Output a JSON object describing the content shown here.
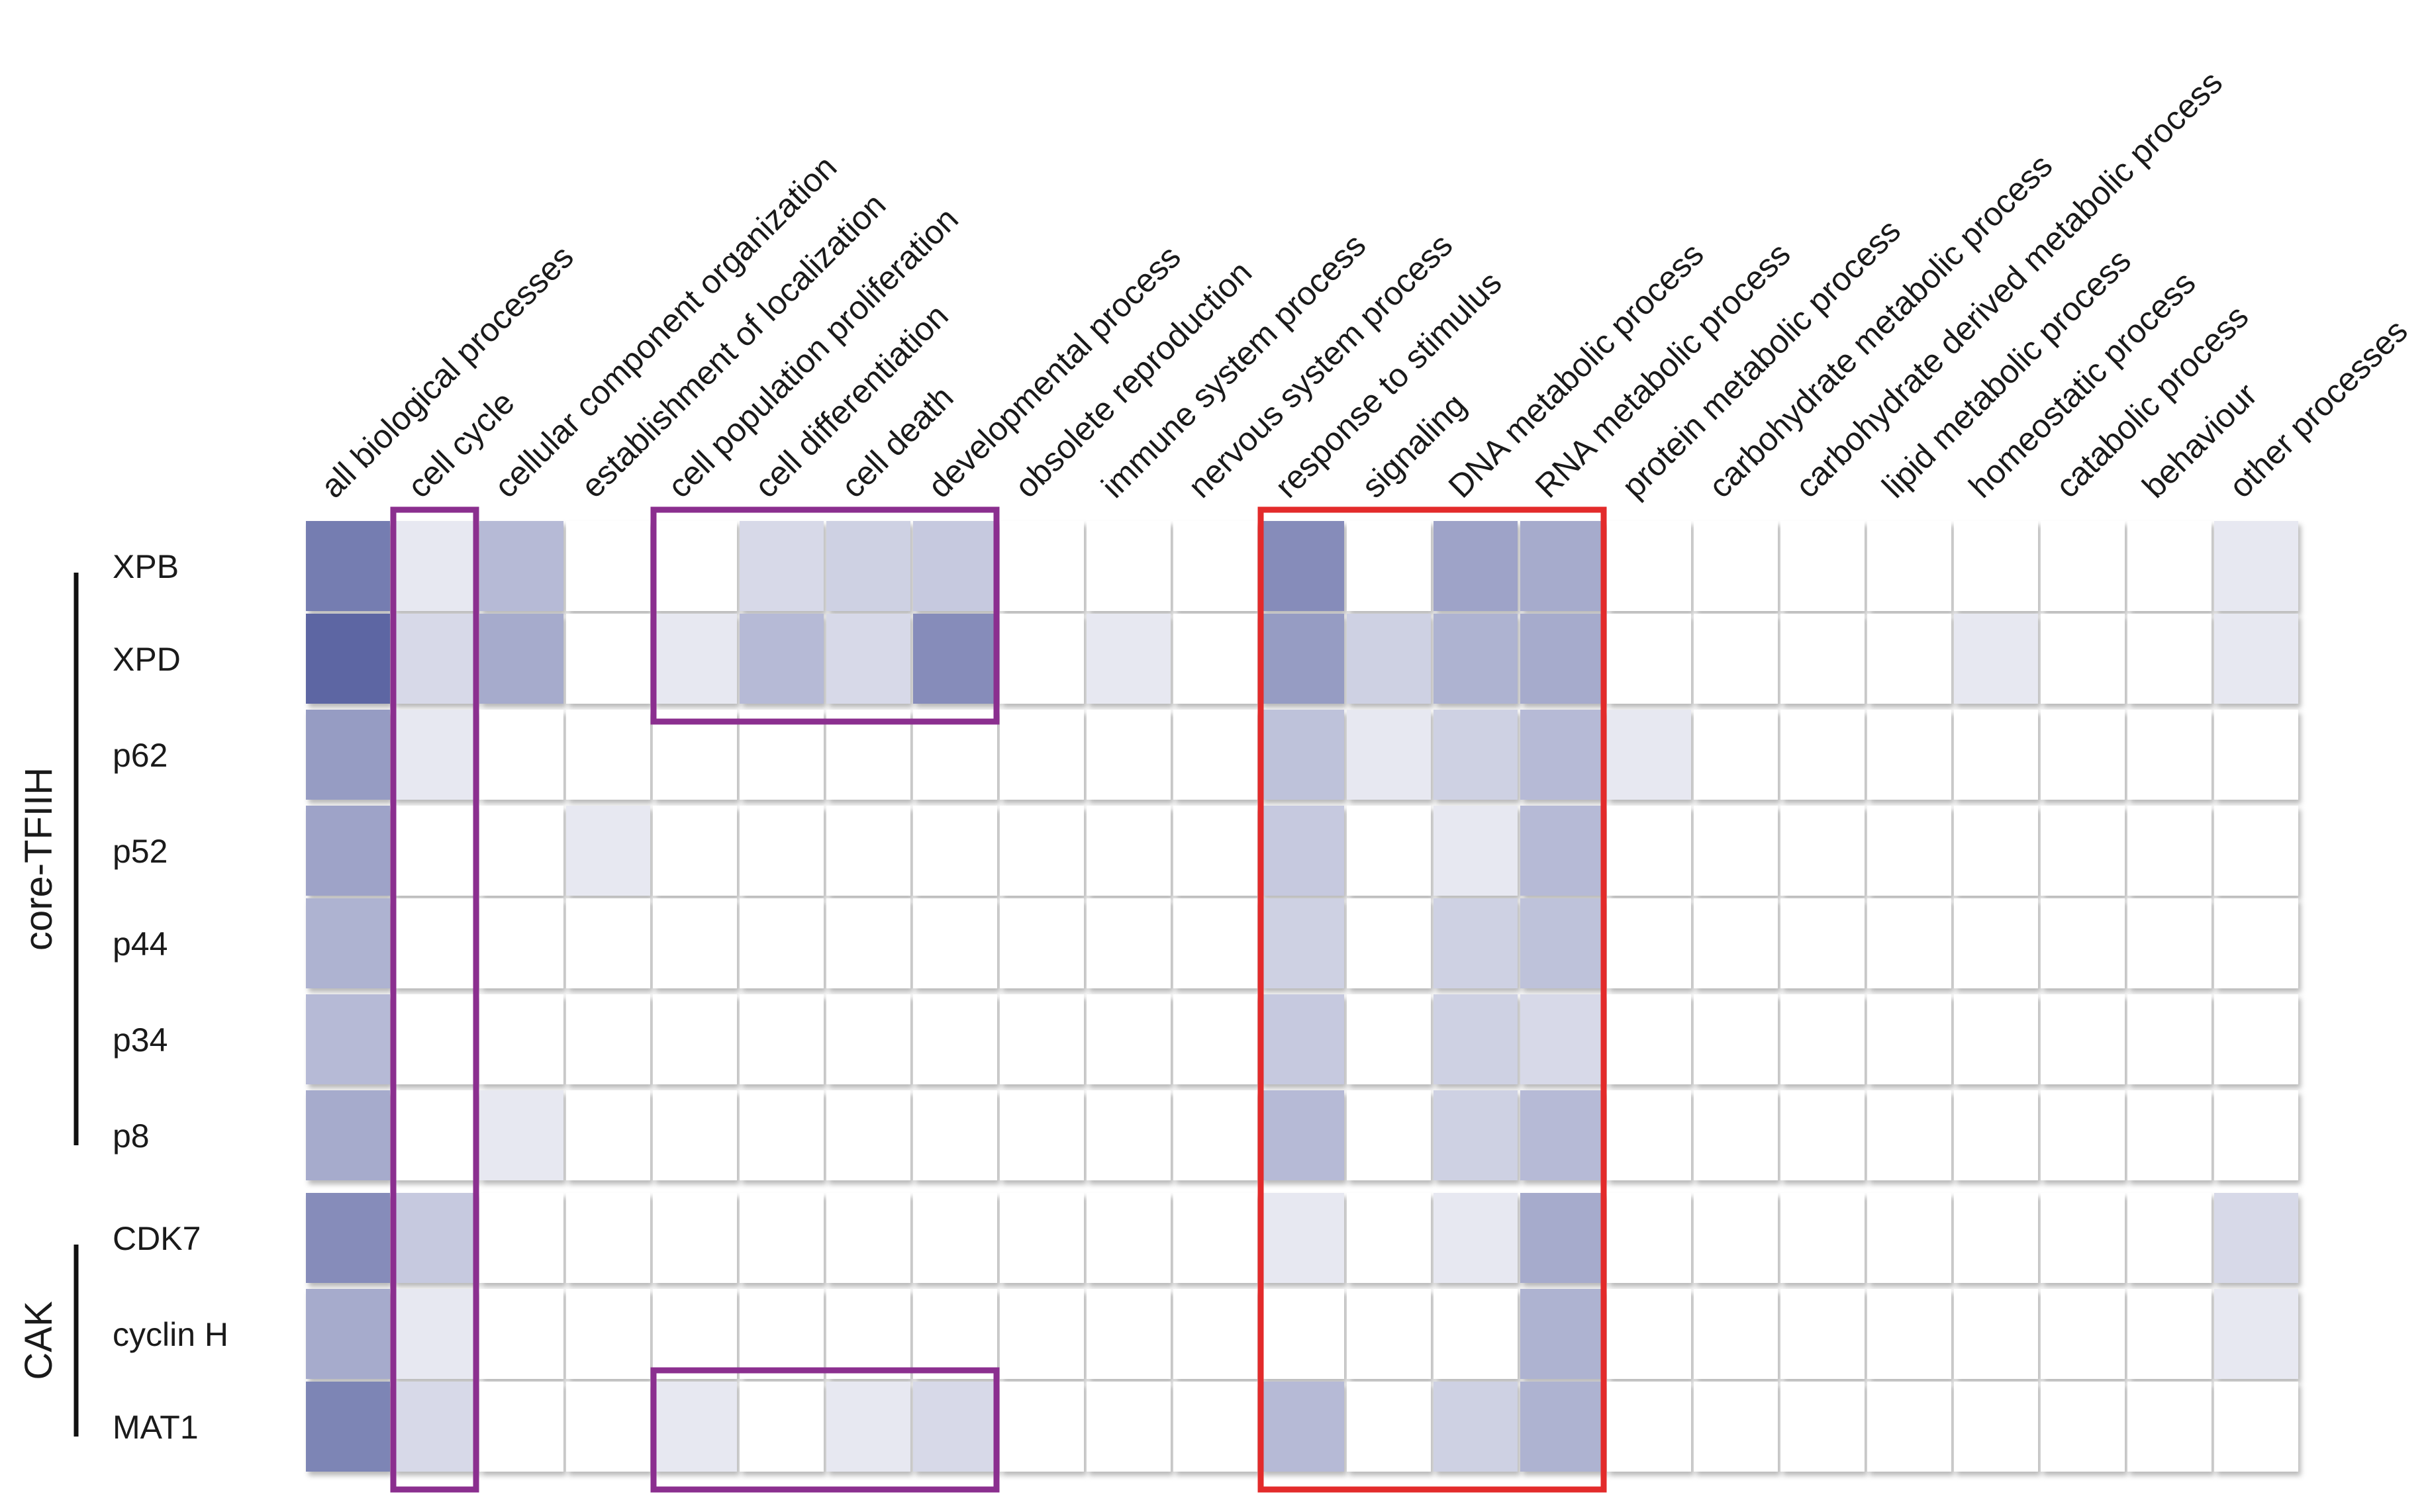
{
  "chart_data": {
    "type": "heatmap",
    "color_low": "#ffffff",
    "color_high": "#5d66a3",
    "columns": [
      "all biological processes",
      "cell cycle",
      "cellular component organization",
      "establishment of localization",
      "cell population proliferation",
      "cell differentiation",
      "cell death",
      "developmental process",
      "obsolete reproduction",
      "immune system process",
      "nervous system process",
      "response to stimulus",
      "signaling",
      "DNA metabolic process",
      "RNA metabolic process",
      "protein metabolic process",
      "carbohydrate metabolic process",
      "carbohydrate derived metabolic process",
      "lipid metabolic process",
      "homeostatic process",
      "catabolic process",
      "behaviour",
      "other processes"
    ],
    "rows": [
      "XPB",
      "XPD",
      "p62",
      "p52",
      "p44",
      "p34",
      "p8",
      "CDK7",
      "cyclin H",
      "MAT1"
    ],
    "row_groups": [
      {
        "name": "core-TFIIH",
        "rows": [
          "XPB",
          "XPD",
          "p62",
          "p52",
          "p44",
          "p34",
          "p8"
        ]
      },
      {
        "name": "CAK",
        "rows": [
          "CDK7",
          "cyclin H",
          "MAT1"
        ]
      }
    ],
    "values": [
      [
        0.85,
        0.15,
        0.45,
        0,
        0,
        0.25,
        0.3,
        0.35,
        0,
        0,
        0,
        0.75,
        0,
        0.6,
        0.55,
        0,
        0,
        0,
        0,
        0,
        0,
        0,
        0.15
      ],
      [
        1.0,
        0.25,
        0.55,
        0,
        0.15,
        0.45,
        0.25,
        0.75,
        0,
        0.15,
        0,
        0.65,
        0.3,
        0.5,
        0.55,
        0,
        0,
        0,
        0,
        0.15,
        0,
        0,
        0.15
      ],
      [
        0.65,
        0.15,
        0,
        0,
        0,
        0,
        0,
        0,
        0,
        0,
        0,
        0.4,
        0.15,
        0.3,
        0.45,
        0.15,
        0,
        0,
        0,
        0,
        0,
        0,
        0
      ],
      [
        0.6,
        0,
        0,
        0.15,
        0,
        0,
        0,
        0,
        0,
        0,
        0,
        0.35,
        0,
        0.15,
        0.45,
        0,
        0,
        0,
        0,
        0,
        0,
        0,
        0
      ],
      [
        0.5,
        0,
        0,
        0,
        0,
        0,
        0,
        0,
        0,
        0,
        0,
        0.3,
        0,
        0.3,
        0.4,
        0,
        0,
        0,
        0,
        0,
        0,
        0,
        0
      ],
      [
        0.45,
        0,
        0,
        0,
        0,
        0,
        0,
        0,
        0,
        0,
        0,
        0.35,
        0,
        0.3,
        0.25,
        0,
        0,
        0,
        0,
        0,
        0,
        0,
        0
      ],
      [
        0.55,
        0,
        0.15,
        0,
        0,
        0,
        0,
        0,
        0,
        0,
        0,
        0.45,
        0,
        0.3,
        0.45,
        0,
        0,
        0,
        0,
        0,
        0,
        0,
        0
      ],
      [
        0.75,
        0.35,
        0,
        0,
        0,
        0,
        0,
        0,
        0,
        0,
        0,
        0.15,
        0,
        0.15,
        0.55,
        0,
        0,
        0,
        0,
        0,
        0,
        0,
        0.25
      ],
      [
        0.55,
        0.15,
        0,
        0,
        0,
        0,
        0,
        0,
        0,
        0,
        0,
        0,
        0,
        0,
        0.5,
        0,
        0,
        0,
        0,
        0,
        0,
        0,
        0.15
      ],
      [
        0.8,
        0.25,
        0,
        0,
        0.15,
        0,
        0.15,
        0.25,
        0,
        0,
        0,
        0.45,
        0,
        0.3,
        0.5,
        0,
        0,
        0,
        0,
        0,
        0,
        0,
        0
      ]
    ],
    "highlight_boxes": [
      {
        "color": "#8b2f8f",
        "columns": [
          "cell cycle"
        ],
        "rows": [
          "XPB",
          "MAT1"
        ]
      },
      {
        "color": "#8b2f8f",
        "columns": [
          "cell population proliferation",
          "developmental process"
        ],
        "rows": [
          "XPB",
          "XPD"
        ]
      },
      {
        "color": "#8b2f8f",
        "columns": [
          "cell population proliferation",
          "developmental process"
        ],
        "rows": [
          "MAT1",
          "MAT1"
        ]
      },
      {
        "color": "#e32b2b",
        "columns": [
          "response to stimulus",
          "RNA metabolic process"
        ],
        "rows": [
          "XPB",
          "MAT1"
        ]
      }
    ]
  }
}
